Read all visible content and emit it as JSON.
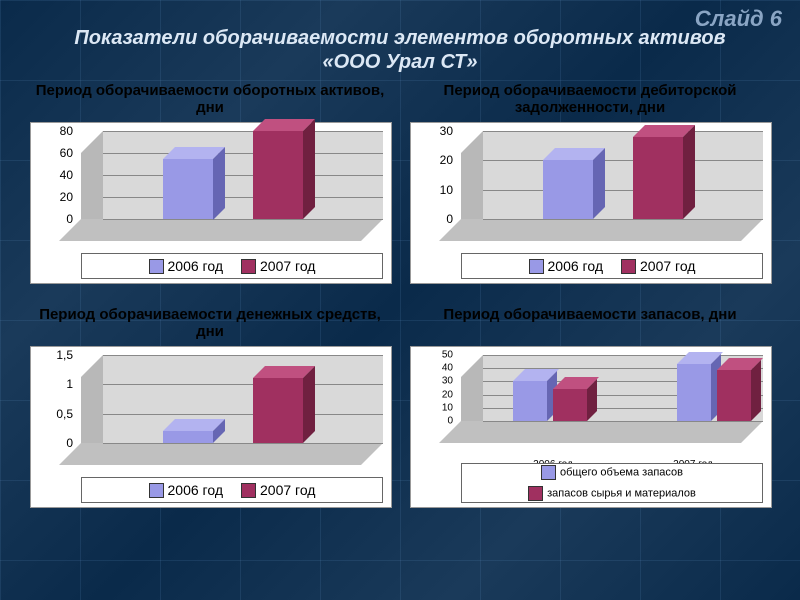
{
  "slide_number": "Слайд 6",
  "main_title_line1": "Показатели оборачиваемости элементов оборотных активов",
  "main_title_line2": "«ООО Урал СТ»",
  "colors": {
    "series_2006": "#9999e6",
    "series_2006_dark": "#6666b3",
    "series_2006_top": "#b3b3f0",
    "series_2007": "#a03060",
    "series_2007_dark": "#702040",
    "series_2007_top": "#c05080"
  },
  "legend_2006": "2006 год",
  "legend_2007": "2007 год",
  "charts": {
    "c1": {
      "title": "Период оборачиваемости оборотных активов, дни",
      "ymax": 80,
      "ystep": 20,
      "bars": [
        {
          "label": "2006",
          "v": 55,
          "series": "2006"
        },
        {
          "label": "2007",
          "v": 80,
          "series": "2007"
        }
      ]
    },
    "c2": {
      "title": "Период оборачиваемости дебиторской задолженности, дни",
      "ymax": 30,
      "ystep": 10,
      "bars": [
        {
          "label": "2006",
          "v": 20,
          "series": "2006"
        },
        {
          "label": "2007",
          "v": 28,
          "series": "2007"
        }
      ]
    },
    "c3": {
      "title": "Период оборачиваемости денежных средств, дни",
      "ymax": 1.5,
      "ystep": 0.5,
      "bars": [
        {
          "label": "2006",
          "v": 0.2,
          "series": "2006"
        },
        {
          "label": "2007",
          "v": 1.1,
          "series": "2007"
        }
      ]
    },
    "c4": {
      "title": "Период оборачиваемости запасов, дни",
      "ymax": 50,
      "ystep": 10,
      "xcats": [
        "2006 год",
        "2007 год"
      ],
      "series": [
        {
          "name": "общего объема запасов",
          "color": "2006"
        },
        {
          "name": "запасов сырья и материалов",
          "color": "2007"
        }
      ],
      "groups": [
        {
          "vals": [
            30,
            24
          ]
        },
        {
          "vals": [
            43,
            39
          ]
        }
      ]
    }
  }
}
